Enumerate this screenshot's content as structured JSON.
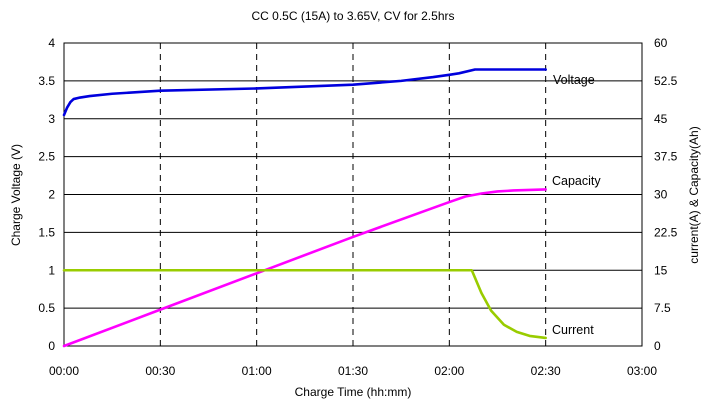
{
  "chart_data": {
    "type": "line",
    "title": "CC  0.5C (15A) to 3.65V, CV for 2.5hrs",
    "xlabel": "Charge Time (hh:mm)",
    "ylabel": "Charge Voltage (V)",
    "y2label": "current(A) & Capacity(Ah)",
    "xlim": [
      0,
      180
    ],
    "ylim": [
      0,
      4
    ],
    "y2lim": [
      0,
      60
    ],
    "x_ticks": [
      {
        "value": 0,
        "label": "00:00"
      },
      {
        "value": 30,
        "label": "00:30"
      },
      {
        "value": 60,
        "label": "01:00"
      },
      {
        "value": 90,
        "label": "01:30"
      },
      {
        "value": 120,
        "label": "02:00"
      },
      {
        "value": 150,
        "label": "02:30"
      },
      {
        "value": 180,
        "label": "03:00"
      }
    ],
    "y_ticks": [
      {
        "value": 0,
        "label": "0"
      },
      {
        "value": 0.5,
        "label": "0.5"
      },
      {
        "value": 1,
        "label": "1"
      },
      {
        "value": 1.5,
        "label": "1.5"
      },
      {
        "value": 2,
        "label": "2"
      },
      {
        "value": 2.5,
        "label": "2.5"
      },
      {
        "value": 3,
        "label": "3"
      },
      {
        "value": 3.5,
        "label": "3.5"
      },
      {
        "value": 4,
        "label": "4"
      }
    ],
    "y2_ticks": [
      {
        "value": 0,
        "label": "0"
      },
      {
        "value": 7.5,
        "label": "7.5"
      },
      {
        "value": 15,
        "label": "15"
      },
      {
        "value": 22.5,
        "label": "22.5"
      },
      {
        "value": 30,
        "label": "30"
      },
      {
        "value": 37.5,
        "label": "37.5"
      },
      {
        "value": 45,
        "label": "45"
      },
      {
        "value": 52.5,
        "label": "52.5"
      },
      {
        "value": 60,
        "label": "60"
      }
    ],
    "grid": {
      "horizontal": "solid",
      "vertical": "dashed"
    },
    "series": [
      {
        "name": "Voltage",
        "axis": "left",
        "color": "#0000dd",
        "x": [
          0,
          1,
          2,
          3,
          5,
          8,
          15,
          30,
          60,
          90,
          105,
          115,
          120,
          123,
          128,
          140,
          150
        ],
        "y": [
          3.05,
          3.15,
          3.22,
          3.26,
          3.28,
          3.3,
          3.33,
          3.37,
          3.4,
          3.45,
          3.5,
          3.55,
          3.58,
          3.6,
          3.65,
          3.65,
          3.65
        ]
      },
      {
        "name": "Capacity",
        "axis": "right",
        "color": "#ff00ff",
        "x": [
          0,
          30,
          60,
          90,
          120,
          125,
          130,
          135,
          140,
          150
        ],
        "y": [
          0,
          7.2,
          14.4,
          21.6,
          28.5,
          29.6,
          30.2,
          30.6,
          30.8,
          31.0
        ]
      },
      {
        "name": "Current",
        "axis": "right",
        "color": "#99cc00",
        "x": [
          0,
          30,
          60,
          90,
          127,
          130,
          133,
          137,
          141,
          145,
          150
        ],
        "y": [
          15,
          15,
          15,
          15,
          15,
          10.5,
          7.0,
          4.2,
          2.8,
          2.0,
          1.6
        ]
      }
    ]
  }
}
